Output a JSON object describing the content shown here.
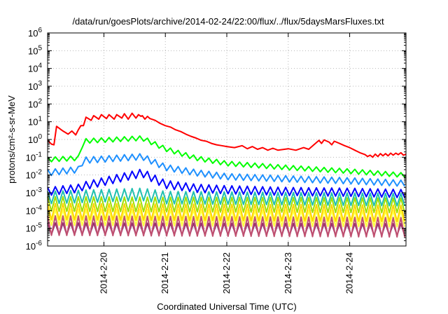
{
  "chart_data": {
    "type": "line",
    "title": "/data/run/goesPlots/archive/2014-02-24/22:00/flux/../flux/5daysMarsFluxes.txt",
    "xlabel": "Coordinated Universal Time (UTC)",
    "ylabel": "protons/cm²-s-sr-MeV",
    "y_scale": "log",
    "ylim": [
      1e-06,
      1000000.0
    ],
    "y_ticks": [
      {
        "value": 1e-06,
        "base": "10",
        "exp": "-6"
      },
      {
        "value": 1e-05,
        "base": "10",
        "exp": "-5"
      },
      {
        "value": 0.0001,
        "base": "10",
        "exp": "-4"
      },
      {
        "value": 0.001,
        "base": "10",
        "exp": "-3"
      },
      {
        "value": 0.01,
        "base": "10",
        "exp": "-2"
      },
      {
        "value": 0.1,
        "base": "10",
        "exp": "-1"
      },
      {
        "value": 1.0,
        "base": "10",
        "exp": "0"
      },
      {
        "value": 10.0,
        "base": "10",
        "exp": "1"
      },
      {
        "value": 100.0,
        "base": "10",
        "exp": "2"
      },
      {
        "value": 1000.0,
        "base": "10",
        "exp": "3"
      },
      {
        "value": 10000.0,
        "base": "10",
        "exp": "4"
      },
      {
        "value": 100000.0,
        "base": "10",
        "exp": "5"
      },
      {
        "value": 1000000.0,
        "base": "10",
        "exp": "6"
      }
    ],
    "xlim": [
      "2014-02-19T02:00",
      "2014-02-24T22:00"
    ],
    "x_ticks": [
      {
        "value": "2014-02-20T00:00",
        "label": "2014-2-20"
      },
      {
        "value": "2014-02-21T00:00",
        "label": "2014-2-21"
      },
      {
        "value": "2014-02-22T00:00",
        "label": "2014-2-22"
      },
      {
        "value": "2014-02-23T00:00",
        "label": "2014-2-23"
      },
      {
        "value": "2014-02-24T00:00",
        "label": "2014-2-24"
      }
    ],
    "grid": true,
    "legend": "none",
    "series": [
      {
        "color": "#ff0000",
        "points": [
          [
            "2014-02-19T02:00",
            0.9
          ],
          [
            "2014-02-19T03:30",
            0.55
          ],
          [
            "2014-02-19T04:30",
            0.5
          ],
          [
            "2014-02-19T05:30",
            5.5
          ],
          [
            "2014-02-19T08:00",
            3
          ],
          [
            "2014-02-19T10:00",
            2
          ],
          [
            "2014-02-19T11:30",
            3
          ],
          [
            "2014-02-19T13:00",
            1.8
          ],
          [
            "2014-02-19T14:00",
            3.5
          ],
          [
            "2014-02-19T15:00",
            6
          ],
          [
            "2014-02-19T16:00",
            6
          ],
          [
            "2014-02-19T17:00",
            18
          ],
          [
            "2014-02-19T19:00",
            12
          ],
          [
            "2014-02-19T20:00",
            22
          ],
          [
            "2014-02-19T22:00",
            14
          ],
          [
            "2014-02-19T23:00",
            25
          ],
          [
            "2014-02-20T01:00",
            15
          ],
          [
            "2014-02-20T02:00",
            25
          ],
          [
            "2014-02-20T04:00",
            14
          ],
          [
            "2014-02-20T05:00",
            25
          ],
          [
            "2014-02-20T07:00",
            16
          ],
          [
            "2014-02-20T08:00",
            28
          ],
          [
            "2014-02-20T09:30",
            14
          ],
          [
            "2014-02-20T11:00",
            30
          ],
          [
            "2014-02-20T12:30",
            16
          ],
          [
            "2014-02-20T13:30",
            25
          ],
          [
            "2014-02-20T14:30",
            20
          ],
          [
            "2014-02-20T15:00",
            22
          ],
          [
            "2014-02-20T16:00",
            14
          ],
          [
            "2014-02-20T17:00",
            20
          ],
          [
            "2014-02-20T18:00",
            15
          ],
          [
            "2014-02-20T20:00",
            12
          ],
          [
            "2014-02-20T22:00",
            8
          ],
          [
            "2014-02-21T00:00",
            6
          ],
          [
            "2014-02-21T02:00",
            5
          ],
          [
            "2014-02-21T04:00",
            3.5
          ],
          [
            "2014-02-21T06:00",
            2.8
          ],
          [
            "2014-02-21T08:00",
            2
          ],
          [
            "2014-02-21T10:00",
            1.5
          ],
          [
            "2014-02-21T12:00",
            1.2
          ],
          [
            "2014-02-21T14:00",
            0.9
          ],
          [
            "2014-02-21T16:00",
            0.8
          ],
          [
            "2014-02-21T18:00",
            0.6
          ],
          [
            "2014-02-21T20:00",
            0.5
          ],
          [
            "2014-02-21T22:00",
            0.45
          ],
          [
            "2014-02-22T00:00",
            0.4
          ],
          [
            "2014-02-22T03:00",
            0.35
          ],
          [
            "2014-02-22T06:00",
            0.45
          ],
          [
            "2014-02-22T08:00",
            0.3
          ],
          [
            "2014-02-22T10:00",
            0.4
          ],
          [
            "2014-02-22T12:00",
            0.28
          ],
          [
            "2014-02-22T14:00",
            0.35
          ],
          [
            "2014-02-22T16:00",
            0.25
          ],
          [
            "2014-02-22T18:00",
            0.32
          ],
          [
            "2014-02-22T20:00",
            0.25
          ],
          [
            "2014-02-23T00:00",
            0.3
          ],
          [
            "2014-02-23T03:00",
            0.25
          ],
          [
            "2014-02-23T06:00",
            0.35
          ],
          [
            "2014-02-23T08:00",
            0.28
          ],
          [
            "2014-02-23T10:00",
            0.5
          ],
          [
            "2014-02-23T12:00",
            0.9
          ],
          [
            "2014-02-23T13:00",
            0.6
          ],
          [
            "2014-02-23T14:00",
            0.95
          ],
          [
            "2014-02-23T16:00",
            0.7
          ],
          [
            "2014-02-23T17:00",
            0.5
          ],
          [
            "2014-02-23T18:00",
            0.8
          ],
          [
            "2014-02-23T20:00",
            0.6
          ],
          [
            "2014-02-23T22:00",
            0.45
          ],
          [
            "2014-02-24T00:00",
            0.35
          ],
          [
            "2014-02-24T02:00",
            0.25
          ],
          [
            "2014-02-24T04:00",
            0.18
          ],
          [
            "2014-02-24T06:00",
            0.14
          ],
          [
            "2014-02-24T07:00",
            0.11
          ],
          [
            "2014-02-24T08:00",
            0.13
          ],
          [
            "2014-02-24T09:00",
            0.1
          ],
          [
            "2014-02-24T10:00",
            0.15
          ],
          [
            "2014-02-24T11:00",
            0.11
          ],
          [
            "2014-02-24T12:00",
            0.16
          ],
          [
            "2014-02-24T13:00",
            0.12
          ],
          [
            "2014-02-24T14:00",
            0.16
          ],
          [
            "2014-02-24T15:00",
            0.12
          ],
          [
            "2014-02-24T16:00",
            0.17
          ],
          [
            "2014-02-24T17:00",
            0.13
          ],
          [
            "2014-02-24T18:00",
            0.17
          ],
          [
            "2014-02-24T19:00",
            0.14
          ],
          [
            "2014-02-24T20:00",
            0.18
          ],
          [
            "2014-02-24T21:00",
            0.13
          ],
          [
            "2014-02-24T22:00",
            0.15
          ]
        ]
      },
      {
        "color": "#00ff00",
        "start": "2014-02-19T02:00",
        "end": "2014-02-24T22:00",
        "period_hours": 3,
        "env": [
          [
            "2014-02-19T02:00",
            0.1
          ],
          [
            "2014-02-19T14:00",
            0.12
          ],
          [
            "2014-02-19T16:00",
            1.1
          ],
          [
            "2014-02-20T15:00",
            1.6
          ],
          [
            "2014-02-21T00:00",
            0.4
          ],
          [
            "2014-02-21T12:00",
            0.12
          ],
          [
            "2014-02-22T00:00",
            0.06
          ],
          [
            "2014-02-23T00:00",
            0.035
          ],
          [
            "2014-02-24T00:00",
            0.022
          ],
          [
            "2014-02-24T22:00",
            0.013
          ]
        ],
        "dip": 0.55
      },
      {
        "color": "#1e90ff",
        "start": "2014-02-19T02:00",
        "end": "2014-02-24T22:00",
        "period_hours": 3,
        "env": [
          [
            "2014-02-19T02:00",
            0.02
          ],
          [
            "2014-02-19T14:00",
            0.03
          ],
          [
            "2014-02-19T16:00",
            0.1
          ],
          [
            "2014-02-20T15:00",
            0.16
          ],
          [
            "2014-02-21T00:00",
            0.04
          ],
          [
            "2014-02-21T12:00",
            0.02
          ],
          [
            "2014-02-22T00:00",
            0.012
          ],
          [
            "2014-02-23T00:00",
            0.009
          ],
          [
            "2014-02-24T00:00",
            0.007
          ],
          [
            "2014-02-24T22:00",
            0.005
          ]
        ],
        "dip": 0.45
      },
      {
        "color": "#0000ff",
        "start": "2014-02-19T02:00",
        "end": "2014-02-24T22:00",
        "period_hours": 3,
        "env": [
          [
            "2014-02-19T02:00",
            0.002
          ],
          [
            "2014-02-19T14:00",
            0.003
          ],
          [
            "2014-02-19T16:00",
            0.004
          ],
          [
            "2014-02-20T15:00",
            0.022
          ],
          [
            "2014-02-21T00:00",
            0.005
          ],
          [
            "2014-02-21T12:00",
            0.003
          ],
          [
            "2014-02-22T00:00",
            0.0025
          ],
          [
            "2014-02-23T00:00",
            0.002
          ],
          [
            "2014-02-24T00:00",
            0.0018
          ],
          [
            "2014-02-24T22:00",
            0.0015
          ]
        ],
        "dip": 0.35
      },
      {
        "color": "#20c0b0",
        "start": "2014-02-19T02:00",
        "end": "2014-02-24T22:00",
        "period_hours": 3,
        "env": [
          [
            "2014-02-19T02:00",
            0.0012
          ],
          [
            "2014-02-20T15:00",
            0.0018
          ],
          [
            "2014-02-21T00:00",
            0.0012
          ],
          [
            "2014-02-24T22:00",
            0.0009
          ]
        ],
        "dip": 0.2
      },
      {
        "color": "#a0e000",
        "start": "2014-02-19T02:00",
        "end": "2014-02-24T22:00",
        "period_hours": 3,
        "env": [
          [
            "2014-02-19T02:00",
            0.0006
          ],
          [
            "2014-02-24T22:00",
            0.0005
          ]
        ],
        "dip": 0.15
      },
      {
        "color": "#ffd400",
        "start": "2014-02-19T02:00",
        "end": "2014-02-24T22:00",
        "period_hours": 3,
        "env": [
          [
            "2014-02-19T02:00",
            0.00025
          ],
          [
            "2014-02-24T22:00",
            0.0002
          ]
        ],
        "dip": 0.12
      },
      {
        "color": "#ffff40",
        "start": "2014-02-19T02:00",
        "end": "2014-02-24T22:00",
        "period_hours": 3,
        "env": [
          [
            "2014-02-19T02:00",
            0.00012
          ],
          [
            "2014-02-24T22:00",
            0.0001
          ]
        ],
        "dip": 0.12
      },
      {
        "color": "#c05070",
        "start": "2014-02-19T02:00",
        "end": "2014-02-24T22:00",
        "period_hours": 3,
        "env": [
          [
            "2014-02-19T02:00",
            5e-05
          ],
          [
            "2014-02-24T22:00",
            4e-05
          ]
        ],
        "dip": 0.08
      },
      {
        "color": "#903070",
        "start": "2014-02-19T02:00",
        "end": "2014-02-24T22:00",
        "period_hours": 3,
        "env": [
          [
            "2014-02-19T02:00",
            2e-05
          ],
          [
            "2014-02-24T22:00",
            1.8e-05
          ]
        ],
        "dip": 0.22
      }
    ]
  }
}
